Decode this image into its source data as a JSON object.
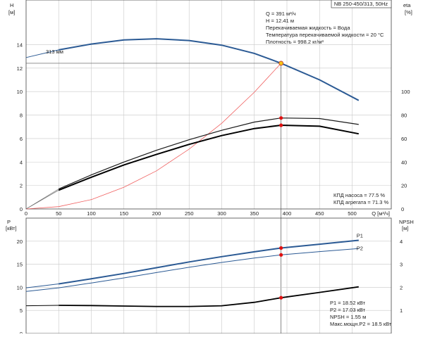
{
  "chart_data": [
    {
      "type": "line",
      "title": "NB 250-450/313, 50Hz",
      "xlabel": "Q [м³/ч]",
      "ylabel_left": "H",
      "ylabel_left_unit": "[м]",
      "ylabel_right": "eta",
      "ylabel_right_unit": "[%]",
      "xlim": [
        0,
        560
      ],
      "ylim_left": [
        0,
        17.8
      ],
      "ylim_right": [
        0,
        178
      ],
      "x_ticks": [
        0,
        50,
        100,
        150,
        200,
        250,
        300,
        350,
        400,
        450,
        500
      ],
      "y_ticks_left": [
        0,
        2,
        4,
        6,
        8,
        10,
        12,
        14
      ],
      "y_ticks_right": [
        0,
        20,
        40,
        60,
        80,
        100
      ],
      "grid": true,
      "series": [
        {
          "name": "313 мм",
          "axis": "left",
          "x": [
            0,
            50,
            100,
            150,
            200,
            250,
            300,
            350,
            391,
            450,
            510
          ],
          "values": [
            12.9,
            13.55,
            14.05,
            14.4,
            14.5,
            14.35,
            13.95,
            13.25,
            12.41,
            11.0,
            9.25
          ]
        },
        {
          "name": "",
          "axis": "right",
          "x": [
            50,
            100,
            150,
            200,
            250,
            300,
            350,
            391,
            450,
            510
          ],
          "values": [
            17,
            29,
            40,
            50,
            59,
            67,
            74,
            77.5,
            77,
            72
          ]
        },
        {
          "name": "",
          "axis": "right",
          "x": [
            50,
            100,
            150,
            200,
            250,
            300,
            350,
            391,
            450,
            510
          ],
          "values": [
            16,
            27,
            37.5,
            46.5,
            55,
            62.5,
            68.5,
            71.3,
            70.5,
            64
          ]
        },
        {
          "name": "",
          "axis": "left",
          "x": [
            0,
            50,
            100,
            150,
            200,
            250,
            300,
            350,
            391
          ],
          "values": [
            0,
            0.2,
            0.8,
            1.85,
            3.25,
            5.1,
            7.3,
            9.95,
            12.41
          ]
        }
      ],
      "operating_point": {
        "x": 391,
        "y": 12.41
      },
      "annotations": {
        "curve_label": "313 мм",
        "info_lines": [
          "Q = 391 м³/ч",
          "H = 12.41 м",
          "Перекачиваемая жидкость = Вода",
          "Температура перекачиваемой жидкости = 20 °C",
          "Плотность = 998.2 кг/м³"
        ],
        "eff_lines": [
          "КПД насоса = 77.5 %",
          "КПД агрегата = 71.3 %"
        ]
      }
    },
    {
      "type": "line",
      "ylabel_left": "P",
      "ylabel_left_unit": "[кВт]",
      "ylabel_right": "NPSH",
      "ylabel_right_unit": "[м]",
      "xlim": [
        0,
        560
      ],
      "ylim_left": [
        0,
        25
      ],
      "ylim_right": [
        0,
        5
      ],
      "y_ticks_left": [
        0,
        5,
        10,
        15,
        20
      ],
      "y_ticks_right": [
        1,
        2,
        3,
        4
      ],
      "grid": true,
      "series": [
        {
          "name": "P1",
          "axis": "left",
          "x": [
            0,
            50,
            100,
            150,
            200,
            250,
            300,
            350,
            391,
            450,
            510
          ],
          "values": [
            9.9,
            10.75,
            11.85,
            13.0,
            14.25,
            15.5,
            16.65,
            17.7,
            18.52,
            19.35,
            20.2
          ]
        },
        {
          "name": "P2",
          "axis": "left",
          "x": [
            0,
            50,
            100,
            150,
            200,
            250,
            300,
            350,
            391,
            450,
            510
          ],
          "values": [
            9.1,
            9.9,
            10.95,
            12.05,
            13.2,
            14.35,
            15.4,
            16.35,
            17.03,
            17.75,
            18.4
          ]
        },
        {
          "name": "",
          "axis": "right",
          "x": [
            0,
            50,
            100,
            150,
            200,
            250,
            300,
            350,
            391,
            450,
            510
          ],
          "values": [
            1.2,
            1.22,
            1.21,
            1.19,
            1.17,
            1.17,
            1.2,
            1.35,
            1.55,
            1.78,
            2.02
          ]
        }
      ],
      "operating_points": [
        18.52,
        17.03
      ],
      "annotations": {
        "info_lines": [
          "P1 = 18.52 кВт",
          "P2 = 17.03 кВт",
          "NPSH = 1.55 м",
          "Макс.мощн.P2 = 18.5 кВт"
        ]
      }
    }
  ]
}
